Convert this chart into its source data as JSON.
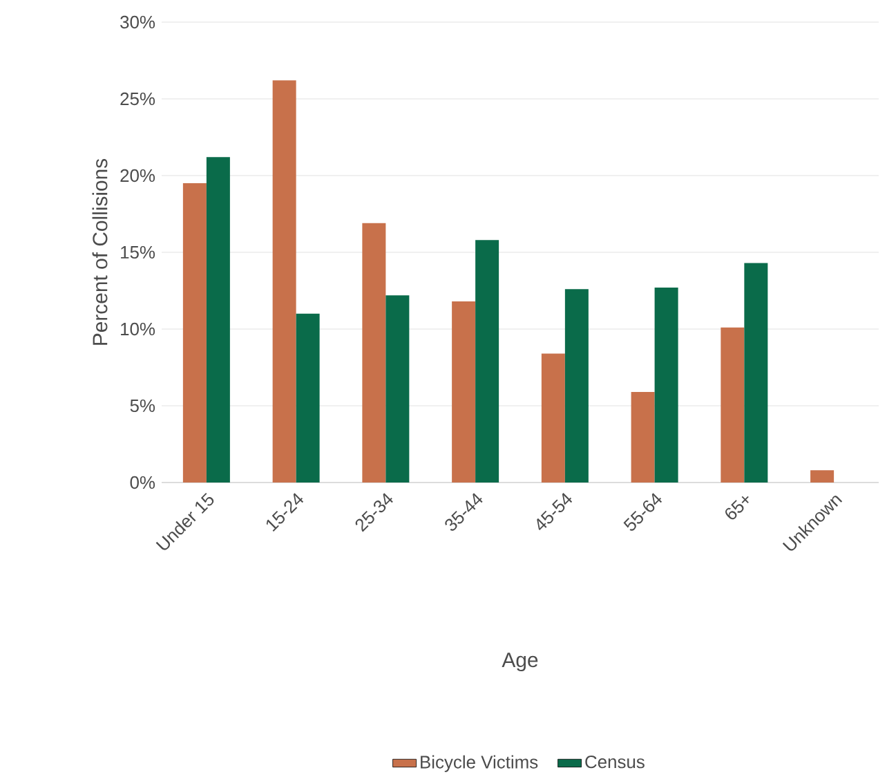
{
  "chart_data": {
    "type": "bar",
    "xlabel": "Age",
    "ylabel": "Percent of Collisions",
    "categories": [
      "Under 15",
      "15-24",
      "25-34",
      "35-44",
      "45-54",
      "55-64",
      "65+",
      "Unknown"
    ],
    "series": [
      {
        "name": "Bicycle Victims",
        "color": "#c8714b",
        "values": [
          19.5,
          26.2,
          16.9,
          11.8,
          8.4,
          5.9,
          10.1,
          0.8
        ]
      },
      {
        "name": "Census",
        "color": "#0a6b4a",
        "values": [
          21.2,
          11.0,
          12.2,
          15.8,
          12.6,
          12.7,
          14.3,
          null
        ]
      }
    ],
    "ylim": [
      0,
      30
    ],
    "yticks": [
      {
        "value": 0,
        "label": "0%"
      },
      {
        "value": 5,
        "label": "5%"
      },
      {
        "value": 10,
        "label": "10%"
      },
      {
        "value": 15,
        "label": "15%"
      },
      {
        "value": 20,
        "label": "20%"
      },
      {
        "value": 25,
        "label": "25%"
      },
      {
        "value": 30,
        "label": "30%"
      }
    ],
    "grid": "y",
    "legend": "bottom"
  }
}
